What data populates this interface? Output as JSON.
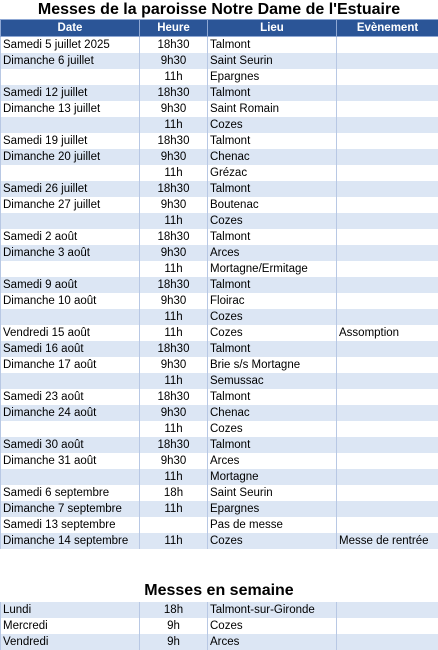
{
  "title": "Messes de la paroisse Notre Dame de l'Estuaire",
  "headers": {
    "date": "Date",
    "heure": "Heure",
    "lieu": "Lieu",
    "evenement": "Evènement"
  },
  "rows": [
    {
      "date": "Samedi 5 juillet 2025",
      "heure": "18h30",
      "lieu": "Talmont",
      "evenement": ""
    },
    {
      "date": "Dimanche 6 juillet",
      "heure": "9h30",
      "lieu": "Saint Seurin",
      "evenement": ""
    },
    {
      "date": "",
      "heure": "11h",
      "lieu": "Epargnes",
      "evenement": ""
    },
    {
      "date": "Samedi 12 juillet",
      "heure": "18h30",
      "lieu": "Talmont",
      "evenement": ""
    },
    {
      "date": "Dimanche 13 juillet",
      "heure": "9h30",
      "lieu": "Saint Romain",
      "evenement": ""
    },
    {
      "date": "",
      "heure": "11h",
      "lieu": "Cozes",
      "evenement": ""
    },
    {
      "date": "Samedi 19 juillet",
      "heure": "18h30",
      "lieu": "Talmont",
      "evenement": ""
    },
    {
      "date": "Dimanche 20 juillet",
      "heure": "9h30",
      "lieu": "Chenac",
      "evenement": ""
    },
    {
      "date": "",
      "heure": "11h",
      "lieu": "Grézac",
      "evenement": ""
    },
    {
      "date": "Samedi 26 juillet",
      "heure": "18h30",
      "lieu": "Talmont",
      "evenement": ""
    },
    {
      "date": "Dimanche 27 juillet",
      "heure": "9h30",
      "lieu": "Boutenac",
      "evenement": ""
    },
    {
      "date": "",
      "heure": "11h",
      "lieu": "Cozes",
      "evenement": ""
    },
    {
      "date": "Samedi  2 août",
      "heure": "18h30",
      "lieu": "Talmont",
      "evenement": ""
    },
    {
      "date": "Dimanche 3 août",
      "heure": "9h30",
      "lieu": "Arces",
      "evenement": ""
    },
    {
      "date": "",
      "heure": "11h",
      "lieu": "Mortagne/Ermitage",
      "evenement": ""
    },
    {
      "date": "Samedi 9 août",
      "heure": "18h30",
      "lieu": "Talmont",
      "evenement": ""
    },
    {
      "date": "Dimanche 10 août",
      "heure": "9h30",
      "lieu": "Floirac",
      "evenement": ""
    },
    {
      "date": "",
      "heure": "11h",
      "lieu": "Cozes",
      "evenement": ""
    },
    {
      "date": "Vendredi 15 août",
      "heure": "11h",
      "lieu": "Cozes",
      "evenement": "Assomption"
    },
    {
      "date": "Samedi 16 août",
      "heure": "18h30",
      "lieu": "Talmont",
      "evenement": ""
    },
    {
      "date": "Dimanche 17 août",
      "heure": "9h30",
      "lieu": "Brie s/s Mortagne",
      "evenement": ""
    },
    {
      "date": "",
      "heure": "11h",
      "lieu": "Semussac",
      "evenement": ""
    },
    {
      "date": "Samedi 23 août",
      "heure": "18h30",
      "lieu": "Talmont",
      "evenement": ""
    },
    {
      "date": "Dimanche 24 août",
      "heure": "9h30",
      "lieu": "Chenac",
      "evenement": ""
    },
    {
      "date": "",
      "heure": "11h",
      "lieu": "Cozes",
      "evenement": ""
    },
    {
      "date": "Samedi 30 août",
      "heure": "18h30",
      "lieu": "Talmont",
      "evenement": ""
    },
    {
      "date": "Dimanche 31 août",
      "heure": "9h30",
      "lieu": "Arces",
      "evenement": ""
    },
    {
      "date": "",
      "heure": "11h",
      "lieu": "Mortagne",
      "evenement": ""
    },
    {
      "date": "Samedi 6 septembre",
      "heure": "18h",
      "lieu": "Saint Seurin",
      "evenement": ""
    },
    {
      "date": "Dimanche 7 septembre",
      "heure": "11h",
      "lieu": "Epargnes",
      "evenement": ""
    },
    {
      "date": "Samedi 13 septembre",
      "heure": "",
      "lieu": "Pas de messe",
      "evenement": ""
    },
    {
      "date": "Dimanche 14 septembre",
      "heure": "11h",
      "lieu": "Cozes",
      "evenement": "Messe de rentrée"
    }
  ],
  "weekly_title": "Messes en semaine",
  "weekly": [
    {
      "jour": "Lundi",
      "heure": "18h",
      "lieu": "Talmont-sur-Gironde"
    },
    {
      "jour": "Mercredi",
      "heure": "9h",
      "lieu": "Cozes"
    },
    {
      "jour": "Vendredi",
      "heure": "9h",
      "lieu": "Arces"
    }
  ]
}
